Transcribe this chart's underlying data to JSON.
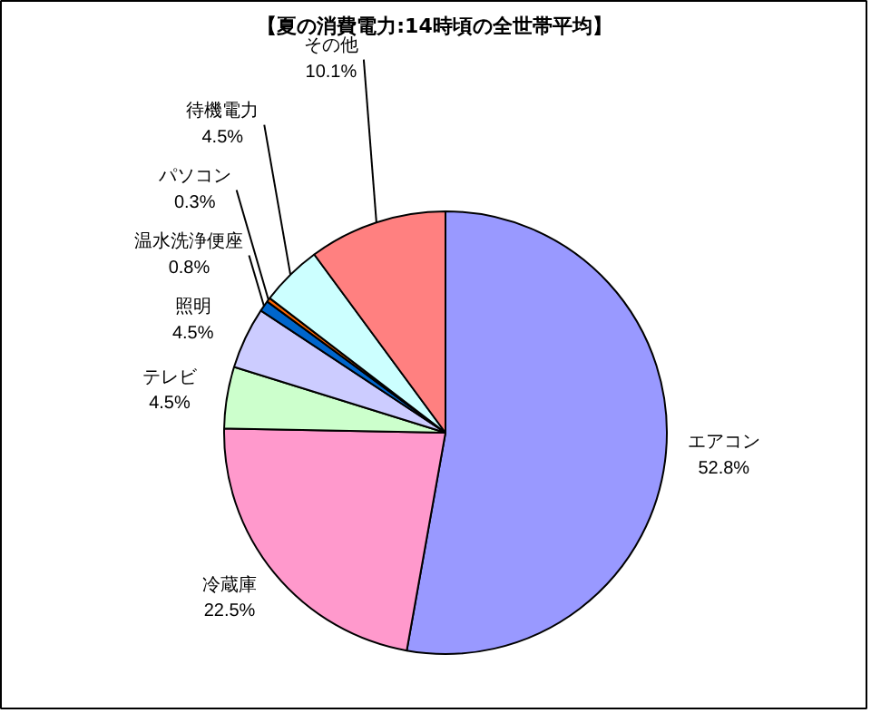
{
  "chart_data": {
    "type": "pie",
    "title": "【夏の消費電力:14時頃の全世帯平均】",
    "categories": [
      "エアコン",
      "冷蔵庫",
      "テレビ",
      "照明",
      "温水洗浄便座",
      "パソコン",
      "待機電力",
      "その他"
    ],
    "values": [
      52.8,
      22.5,
      4.5,
      4.5,
      0.8,
      0.3,
      4.5,
      10.1
    ],
    "value_labels": [
      "52.8%",
      "22.5%",
      "4.5%",
      "4.5%",
      "0.8%",
      "0.3%",
      "4.5%",
      "10.1%"
    ],
    "colors": [
      "#9999ff",
      "#ff99cc",
      "#ccffcc",
      "#ccccff",
      "#0066cc",
      "#ff6600",
      "#ccffff",
      "#ff8080"
    ]
  }
}
